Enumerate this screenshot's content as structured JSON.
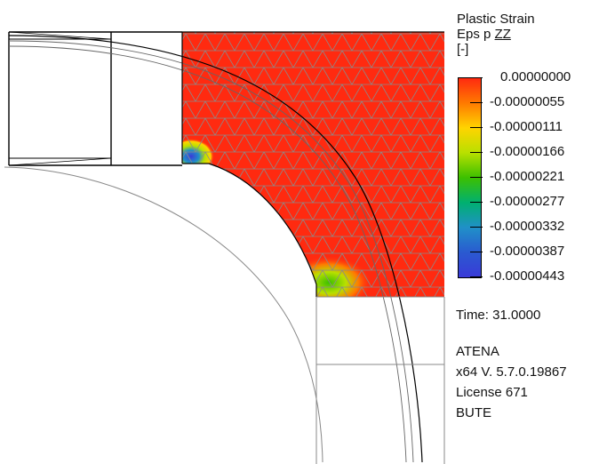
{
  "legend": {
    "title_line1": "Plastic Strain",
    "title_prefix": "Eps p ",
    "title_component": "ZZ",
    "unit": "[-]",
    "ticks": [
      "0.00000000",
      "-0.00000055",
      "-0.00000111",
      "-0.00000166",
      "-0.00000221",
      "-0.00000277",
      "-0.00000332",
      "-0.00000387",
      "-0.00000443"
    ],
    "colors": [
      "#ff2a10",
      "#ff7a00",
      "#ffd400",
      "#b8e000",
      "#3cc000",
      "#00b070",
      "#2090c8",
      "#2a5ad0",
      "#3a3ad8"
    ]
  },
  "time": {
    "label": "Time:",
    "value": "31.0000"
  },
  "info": {
    "program": "ATENA",
    "version": "x64 V. 5.7.0.19867",
    "license": "License 671",
    "user": "BUTE"
  },
  "colors": {
    "field": "#ff2a10",
    "mesh": "#8a8a8a",
    "outline": "#000000",
    "thin_line": "#888888"
  }
}
